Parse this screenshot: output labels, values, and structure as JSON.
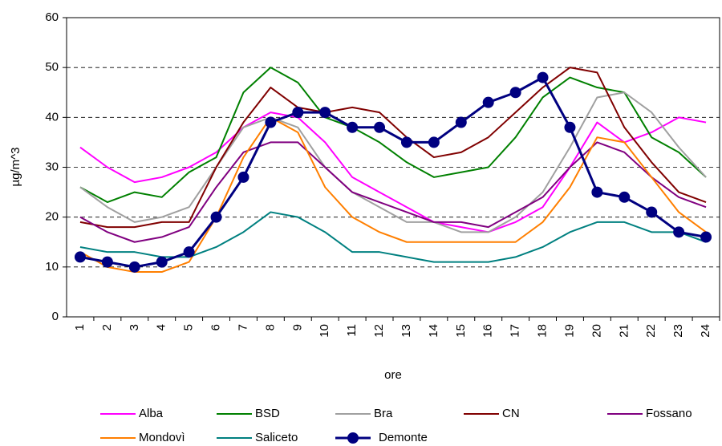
{
  "chart_data": {
    "type": "line",
    "categories": [
      "1",
      "2",
      "3",
      "4",
      "5",
      "6",
      "7",
      "8",
      "9",
      "10",
      "11",
      "12",
      "13",
      "14",
      "15",
      "16",
      "17",
      "18",
      "19",
      "20",
      "21",
      "22",
      "23",
      "24"
    ],
    "x_label": "ore",
    "y_label": "µg/m^3",
    "ylim": [
      0,
      60
    ],
    "yticks": [
      0,
      10,
      20,
      30,
      40,
      50,
      60
    ],
    "grid": true,
    "legend": "bottom",
    "series": [
      {
        "name": "Alba",
        "color": "#ff00ff",
        "values": [
          34,
          30,
          27,
          28,
          30,
          33,
          38,
          41,
          40,
          35,
          28,
          25,
          22,
          19,
          18,
          17,
          19,
          22,
          30,
          39,
          35,
          37,
          40,
          39
        ]
      },
      {
        "name": "BSD",
        "color": "#008000",
        "values": [
          26,
          23,
          25,
          24,
          29,
          32,
          45,
          50,
          47,
          40,
          38,
          35,
          31,
          28,
          29,
          30,
          36,
          44,
          48,
          46,
          45,
          36,
          33,
          28
        ]
      },
      {
        "name": "Bra",
        "color": "#a0a0a0",
        "values": [
          26,
          22,
          19,
          20,
          22,
          30,
          38,
          40,
          38,
          30,
          25,
          22,
          19,
          19,
          17,
          17,
          20,
          25,
          34,
          44,
          45,
          41,
          34,
          28
        ]
      },
      {
        "name": "CN",
        "color": "#800000",
        "values": [
          19,
          18,
          18,
          19,
          19,
          30,
          39,
          46,
          42,
          41,
          42,
          41,
          36,
          32,
          33,
          36,
          41,
          46,
          50,
          49,
          38,
          31,
          25,
          23
        ]
      },
      {
        "name": "Fossano",
        "color": "#800080",
        "values": [
          20,
          17,
          15,
          16,
          18,
          26,
          33,
          35,
          35,
          30,
          25,
          23,
          21,
          19,
          19,
          18,
          21,
          24,
          30,
          35,
          33,
          28,
          24,
          22
        ]
      },
      {
        "name": "Mondovì",
        "color": "#ff7f00",
        "values": [
          13,
          10,
          9,
          9,
          11,
          20,
          32,
          40,
          37,
          26,
          20,
          17,
          15,
          15,
          15,
          15,
          15,
          19,
          26,
          36,
          35,
          28,
          21,
          17
        ]
      },
      {
        "name": "Saliceto",
        "color": "#008080",
        "values": [
          14,
          13,
          13,
          12,
          12,
          14,
          17,
          21,
          20,
          17,
          13,
          13,
          12,
          11,
          11,
          11,
          12,
          14,
          17,
          19,
          19,
          17,
          17,
          15
        ]
      },
      {
        "name": "Demonte",
        "color": "#000080",
        "marker": "circle",
        "values": [
          12,
          11,
          10,
          11,
          13,
          20,
          28,
          39,
          41,
          41,
          38,
          38,
          35,
          35,
          39,
          43,
          45,
          48,
          38,
          25,
          24,
          21,
          17,
          16
        ]
      }
    ]
  }
}
